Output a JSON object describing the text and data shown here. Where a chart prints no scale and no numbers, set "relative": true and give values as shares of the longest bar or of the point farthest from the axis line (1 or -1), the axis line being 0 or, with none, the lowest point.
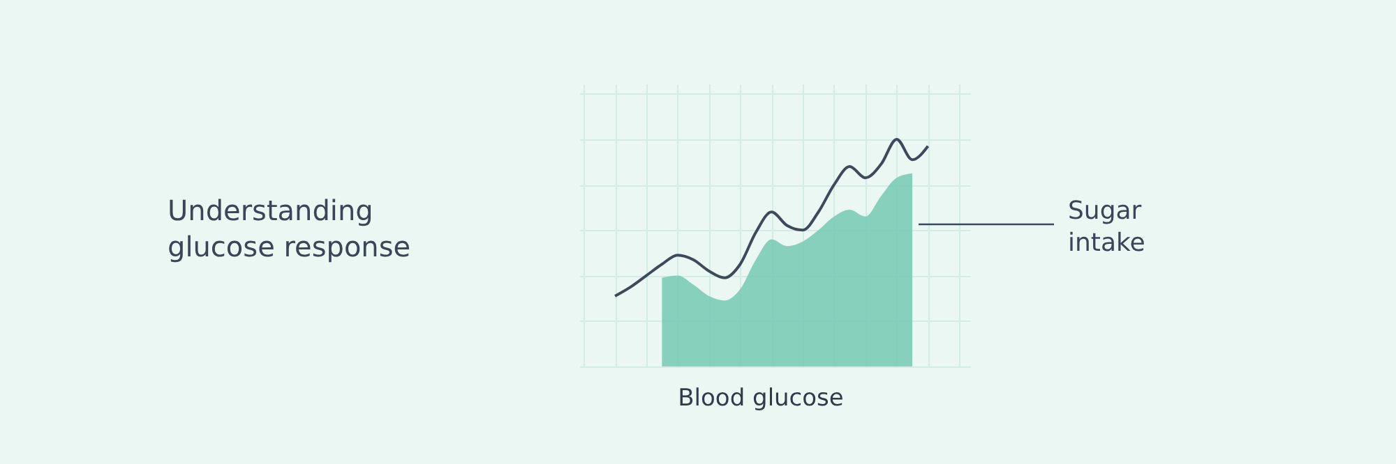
{
  "chart_data": {
    "type": "line",
    "title": "Understanding glucose response",
    "xlabel": "Blood glucose",
    "annotations": [
      "Sugar intake"
    ],
    "relative": true,
    "grid": true,
    "categories": [
      null,
      null,
      null,
      null,
      null,
      null,
      null,
      null,
      null,
      null,
      null,
      null,
      null,
      null,
      null,
      null,
      null,
      null,
      null,
      null,
      null
    ],
    "series": [
      {
        "type": "area",
        "color": "#7ccbb6",
        "values": [
          null,
          null,
          null,
          0.39,
          0.4,
          0.36,
          0.31,
          0.29,
          0.34,
          0.47,
          0.56,
          0.53,
          0.55,
          0.6,
          0.66,
          0.69,
          0.66,
          0.75,
          0.83,
          0.85,
          null
        ]
      },
      {
        "color": "#3e4a5c",
        "values": [
          0.31,
          0.35,
          0.4,
          0.45,
          0.49,
          0.47,
          0.42,
          0.39,
          0.45,
          0.59,
          0.68,
          0.62,
          0.6,
          0.68,
          0.8,
          0.88,
          0.83,
          0.89,
          1,
          0.91,
          0.97
        ]
      }
    ]
  }
}
